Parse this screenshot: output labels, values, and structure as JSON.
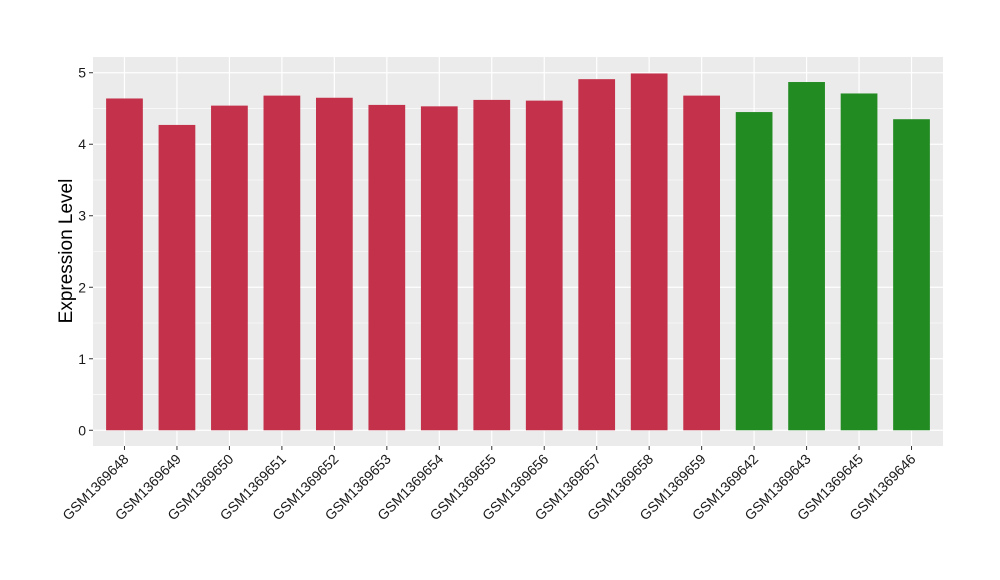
{
  "chart_data": {
    "type": "bar",
    "title": "",
    "xlabel": "",
    "ylabel": "Expression Level",
    "ylim": [
      -0.22,
      5.22
    ],
    "yticks": [
      0,
      1,
      2,
      3,
      4,
      5
    ],
    "grid": true,
    "legend": "none",
    "categories": [
      "GSM1369648",
      "GSM1369649",
      "GSM1369650",
      "GSM1369651",
      "GSM1369652",
      "GSM1369653",
      "GSM1369654",
      "GSM1369655",
      "GSM1369656",
      "GSM1369657",
      "GSM1369658",
      "GSM1369659",
      "GSM1369642",
      "GSM1369643",
      "GSM1369645",
      "GSM1369646"
    ],
    "values": [
      4.64,
      4.27,
      4.54,
      4.68,
      4.65,
      4.55,
      4.53,
      4.62,
      4.61,
      4.91,
      4.99,
      4.68,
      4.45,
      4.87,
      4.71,
      4.35
    ],
    "bar_colors": [
      "#C3314A",
      "#C3314A",
      "#C3314A",
      "#C3314A",
      "#C3314A",
      "#C3314A",
      "#C3314A",
      "#C3314A",
      "#C3314A",
      "#C3314A",
      "#C3314A",
      "#C3314A",
      "#228B22",
      "#228B22",
      "#228B22",
      "#228B22"
    ],
    "panel_background": "#EBEBEB",
    "gridline_color": "#FFFFFF"
  }
}
